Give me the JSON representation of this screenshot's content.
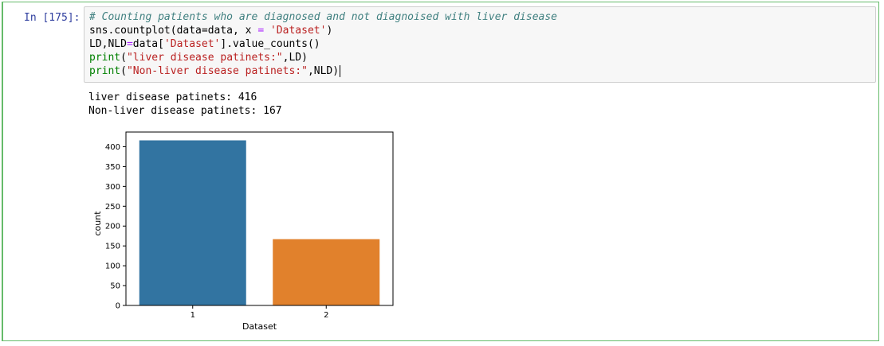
{
  "cell": {
    "prompt": "In [175]:",
    "code": {
      "comment": "# Counting patients who are diagnosed and not diagnoised with liver disease",
      "line2": {
        "a": "sns.countplot(data=data, x ",
        "eq": "=",
        "b": " ",
        "str": "'Dataset'",
        "c": ")"
      },
      "line3": {
        "a": "LD,NLD",
        "eq": "=",
        "b": "data[",
        "str": "'Dataset'",
        "c": "].value_counts()"
      },
      "line4": {
        "fn": "print",
        "a": "(",
        "str": "\"liver disease patinets:\"",
        "c": ",LD)"
      },
      "line5": {
        "fn": "print",
        "a": "(",
        "str": "\"Non-liver disease patinets:\"",
        "c": ",NLD)"
      }
    },
    "output": {
      "line1": "liver disease patinets: 416",
      "line2": "Non-liver disease patinets: 167"
    }
  },
  "chart_data": {
    "type": "bar",
    "categories": [
      "1",
      "2"
    ],
    "values": [
      416,
      167
    ],
    "colors": [
      "#3274a1",
      "#e1812c"
    ],
    "xlabel": "Dataset",
    "ylabel": "count",
    "ylim": [
      0,
      437
    ],
    "yticks": [
      0,
      50,
      100,
      150,
      200,
      250,
      300,
      350,
      400
    ]
  }
}
